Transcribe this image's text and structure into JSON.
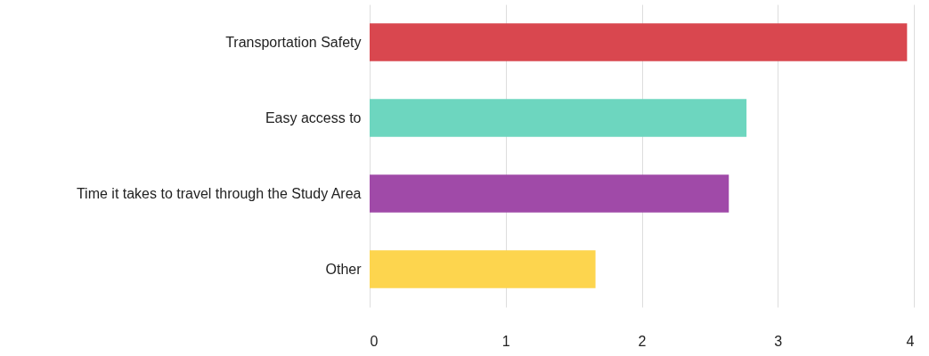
{
  "chart_data": {
    "type": "bar",
    "orientation": "horizontal",
    "categories": [
      "Transportation Safety",
      "Easy access to",
      "Time it takes to travel through the Study Area",
      "Other"
    ],
    "values": [
      3.95,
      2.77,
      2.64,
      1.66
    ],
    "colors": [
      "#d9474f",
      "#6dd6bf",
      "#a04aa8",
      "#fdd54e"
    ],
    "xlim": [
      0,
      4
    ],
    "xticks": [
      0,
      1,
      2,
      3,
      4
    ],
    "grid": "x"
  }
}
